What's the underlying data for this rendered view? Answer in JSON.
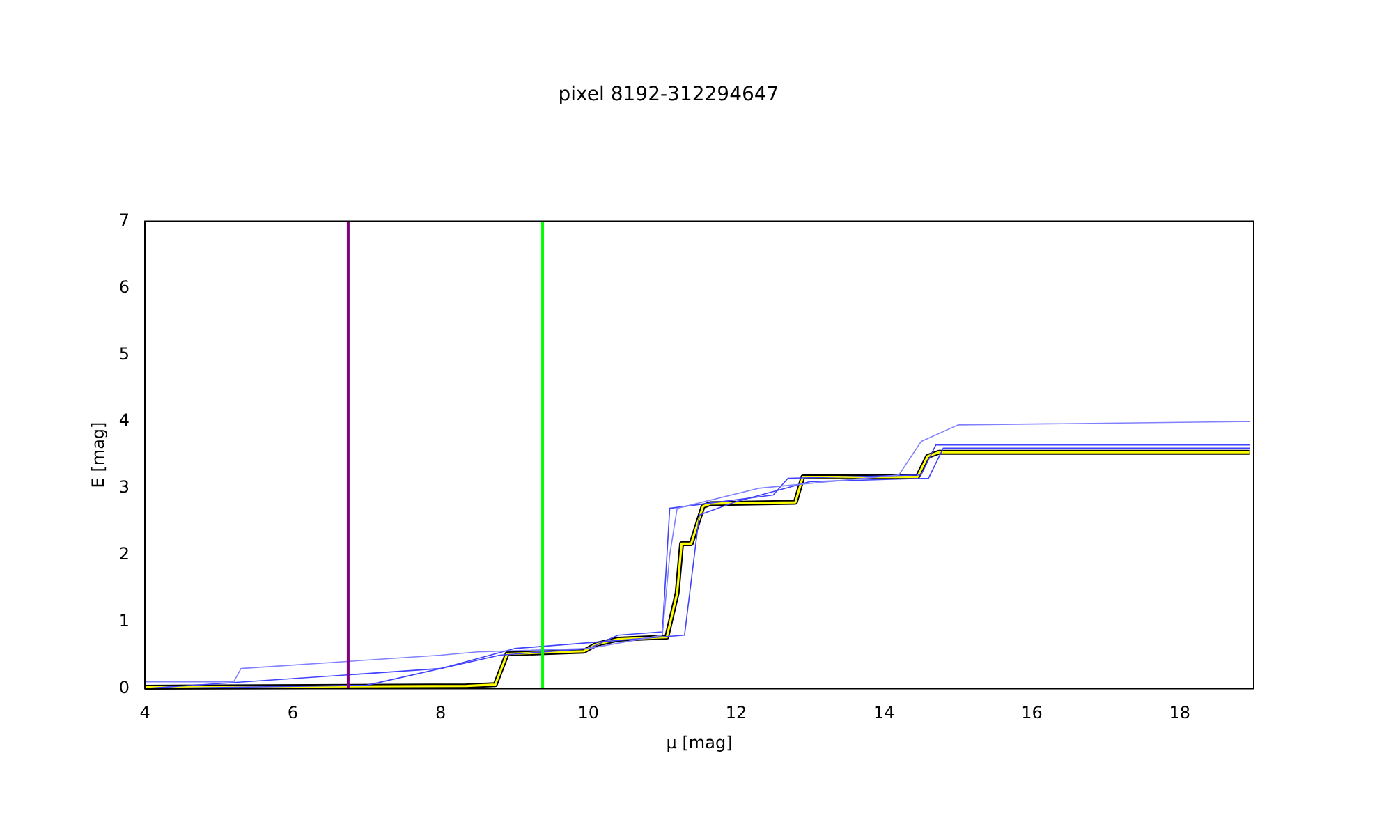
{
  "chart_data": {
    "type": "line",
    "title": "pixel 8192-312294647",
    "xlabel": "μ [mag]",
    "ylabel": "E [mag]",
    "xlim": [
      4,
      19
    ],
    "xticks": [
      4,
      6,
      8,
      10,
      12,
      14,
      16,
      18
    ],
    "ylim": [
      0,
      7
    ],
    "yticks": [
      0,
      1,
      2,
      3,
      4,
      5,
      6,
      7
    ],
    "grid": false,
    "legend": false,
    "marker": "none",
    "line_style": "solid",
    "series": [
      {
        "color": "#8080ff",
        "x": [
          4,
          5.2,
          5.3,
          8,
          8.5,
          10,
          11,
          11.1,
          11.2,
          12.3,
          14.2,
          14.5,
          15,
          18.95
        ],
        "values": [
          0.1,
          0.1,
          0.3,
          0.5,
          0.55,
          0.6,
          0.8,
          2.0,
          2.7,
          3.0,
          3.2,
          3.7,
          3.95,
          4.0
        ]
      },
      {
        "color": "#4040ff",
        "x": [
          4,
          7,
          8.8,
          10,
          10.4,
          11,
          11.1,
          12.5,
          12.7,
          14.5,
          14.7,
          18.95
        ],
        "values": [
          0,
          0.05,
          0.5,
          0.6,
          0.8,
          0.85,
          2.7,
          2.9,
          3.15,
          3.2,
          3.65,
          3.65
        ]
      },
      {
        "color": "#4040ff",
        "x": [
          4,
          8,
          9,
          11.3,
          11.5,
          12,
          13,
          14.6,
          14.8,
          18.95
        ],
        "values": [
          0,
          0.3,
          0.6,
          0.8,
          2.6,
          2.8,
          3.1,
          3.15,
          3.6,
          3.6
        ]
      },
      {
        "color": "#ffff00",
        "x": [
          4,
          8.35,
          8.74,
          8.9,
          9.94,
          10.1,
          10.4,
          11.06,
          11.2,
          11.26,
          11.39,
          11.55,
          11.65,
          12.8,
          12.9,
          14.45,
          14.59,
          14.74,
          18.94
        ],
        "values": [
          0.02,
          0.04,
          0.06,
          0.52,
          0.56,
          0.66,
          0.74,
          0.77,
          1.43,
          2.17,
          2.17,
          2.73,
          2.77,
          2.79,
          3.17,
          3.17,
          3.48,
          3.54,
          3.54
        ]
      }
    ],
    "ref_lines": [
      {
        "axis": "x",
        "value": 6.75,
        "color": "#800080"
      },
      {
        "axis": "x",
        "value": 9.38,
        "color": "#00ff00"
      }
    ]
  }
}
